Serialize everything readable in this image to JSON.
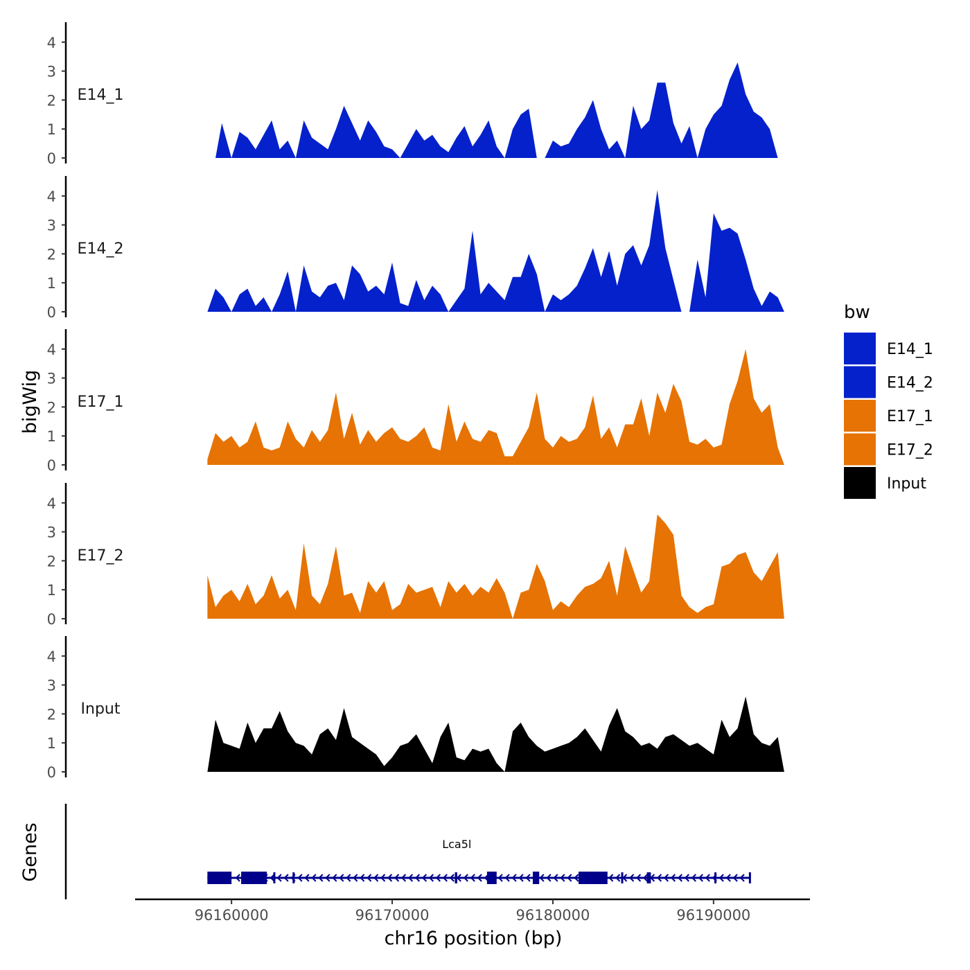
{
  "chart_data": {
    "type": "area",
    "title": "",
    "xlabel": "chr16 position (bp)",
    "ylabel": "bigWig",
    "genes_label": "Genes",
    "xlim": [
      96154000,
      96196000
    ],
    "ylim": [
      0,
      4.7
    ],
    "x_ticks": [
      96160000,
      96170000,
      96180000,
      96190000
    ],
    "x_tick_labels": [
      "96160000",
      "96170000",
      "96180000",
      "96190000"
    ],
    "y_ticks": [
      0,
      1,
      2,
      3,
      4
    ],
    "y_tick_labels": [
      "0",
      "1",
      "2",
      "3",
      "4"
    ],
    "legend": {
      "title": "bw",
      "position": "right",
      "entries": [
        {
          "label": "E14_1",
          "color": "#0421cc"
        },
        {
          "label": "E14_2",
          "color": "#0421cc"
        },
        {
          "label": "E17_1",
          "color": "#e67303"
        },
        {
          "label": "E17_2",
          "color": "#e67303"
        },
        {
          "label": "Input",
          "color": "#000000"
        }
      ]
    },
    "series": [
      {
        "name": "E14_1",
        "color": "#0421cc",
        "x": [
          96158500,
          96159000,
          96159400,
          96160000,
          96160500,
          96161000,
          96161500,
          96162000,
          96162500,
          96163000,
          96163500,
          96164000,
          96164500,
          96165000,
          96165500,
          96166000,
          96166500,
          96167000,
          96167500,
          96168000,
          96168500,
          96169000,
          96169500,
          96170000,
          96170500,
          96171000,
          96171500,
          96172000,
          96172500,
          96173000,
          96173500,
          96174000,
          96174500,
          96175000,
          96175500,
          96176000,
          96176500,
          96177000,
          96177500,
          96178000,
          96178500,
          96179000,
          96179500,
          96180000,
          96180500,
          96181000,
          96181500,
          96182000,
          96182500,
          96183000,
          96183500,
          96184000,
          96184500,
          96185000,
          96185500,
          96186000,
          96186500,
          96187000,
          96187500,
          96188000,
          96188500,
          96189000,
          96189500,
          96190000,
          96190500,
          96191000,
          96191500,
          96192000,
          96192500,
          96193000,
          96193500,
          96194000
        ],
        "values": [
          0,
          0,
          1.2,
          0,
          0.9,
          0.7,
          0.3,
          0.8,
          1.3,
          0.3,
          0.6,
          0,
          1.3,
          0.7,
          0.5,
          0.3,
          1.0,
          1.8,
          1.2,
          0.6,
          1.3,
          0.9,
          0.4,
          0.3,
          0,
          0.5,
          1.0,
          0.6,
          0.8,
          0.4,
          0.2,
          0.7,
          1.1,
          0.4,
          0.8,
          1.3,
          0.4,
          0,
          1.0,
          1.5,
          1.7,
          0,
          0,
          0.6,
          0.4,
          0.5,
          1.0,
          1.4,
          2.0,
          1.0,
          0.3,
          0.6,
          0,
          1.8,
          1.0,
          1.3,
          2.6,
          2.6,
          1.2,
          0.5,
          1.1,
          0,
          1.0,
          1.5,
          1.8,
          2.7,
          3.3,
          2.2,
          1.6,
          1.4,
          1.0,
          0
        ]
      },
      {
        "name": "E14_2",
        "color": "#0421cc",
        "x": [
          96158500,
          96159000,
          96159500,
          96160000,
          96160500,
          96161000,
          96161500,
          96162000,
          96162500,
          96163000,
          96163500,
          96164000,
          96164500,
          96165000,
          96165500,
          96166000,
          96166500,
          96167000,
          96167500,
          96168000,
          96168500,
          96169000,
          96169500,
          96170000,
          96170500,
          96171000,
          96171500,
          96172000,
          96172500,
          96173000,
          96173500,
          96174000,
          96174500,
          96175000,
          96175500,
          96176000,
          96176500,
          96177000,
          96177500,
          96178000,
          96178500,
          96179000,
          96179500,
          96180000,
          96180500,
          96181000,
          96181500,
          96182000,
          96182500,
          96183000,
          96183500,
          96184000,
          96184500,
          96185000,
          96185500,
          96186000,
          96186500,
          96187000,
          96187500,
          96188000,
          96188500,
          96189000,
          96189500,
          96190000,
          96190500,
          96191000,
          96191500,
          96192000,
          96192500,
          96193000,
          96193500,
          96194000,
          96194400
        ],
        "values": [
          0,
          0.8,
          0.5,
          0,
          0.6,
          0.8,
          0.2,
          0.5,
          0,
          0.6,
          1.4,
          0,
          1.6,
          0.7,
          0.5,
          0.9,
          1.0,
          0.4,
          1.6,
          1.3,
          0.7,
          0.9,
          0.6,
          1.7,
          0.3,
          0.2,
          1.1,
          0.4,
          0.9,
          0.6,
          0,
          0.4,
          0.8,
          2.8,
          0.6,
          1.0,
          0.7,
          0.4,
          1.2,
          1.2,
          2.0,
          1.3,
          0,
          0.6,
          0.4,
          0.6,
          0.9,
          1.5,
          2.2,
          1.2,
          2.1,
          0.9,
          2.0,
          2.3,
          1.6,
          2.3,
          4.2,
          2.2,
          1.1,
          0,
          0,
          1.8,
          0.5,
          3.4,
          2.8,
          2.9,
          2.7,
          1.8,
          0.8,
          0.2,
          0.7,
          0.5,
          0
        ]
      },
      {
        "name": "E17_1",
        "color": "#e67303",
        "x": [
          96158500,
          96159000,
          96159500,
          96160000,
          96160500,
          96161000,
          96161500,
          96162000,
          96162500,
          96163000,
          96163500,
          96164000,
          96164500,
          96165000,
          96165500,
          96166000,
          96166500,
          96167000,
          96167500,
          96168000,
          96168500,
          96169000,
          96169500,
          96170000,
          96170500,
          96171000,
          96171500,
          96172000,
          96172500,
          96173000,
          96173500,
          96174000,
          96174500,
          96175000,
          96175500,
          96176000,
          96176500,
          96177000,
          96177500,
          96178000,
          96178500,
          96179000,
          96179500,
          96180000,
          96180500,
          96181000,
          96181500,
          96182000,
          96182500,
          96183000,
          96183500,
          96184000,
          96184500,
          96185000,
          96185500,
          96186000,
          96186500,
          96187000,
          96187500,
          96188000,
          96188500,
          96189000,
          96189500,
          96190000,
          96190500,
          96191000,
          96191500,
          96192000,
          96192500,
          96193000,
          96193500,
          96194000,
          96194400
        ],
        "values": [
          0.2,
          1.1,
          0.8,
          1.0,
          0.6,
          0.8,
          1.5,
          0.6,
          0.5,
          0.6,
          1.5,
          0.9,
          0.6,
          1.2,
          0.8,
          1.2,
          2.5,
          0.9,
          1.8,
          0.7,
          1.2,
          0.8,
          1.1,
          1.3,
          0.9,
          0.8,
          1.0,
          1.3,
          0.6,
          0.5,
          2.1,
          0.8,
          1.5,
          0.9,
          0.8,
          1.2,
          1.1,
          0.3,
          0.3,
          0.8,
          1.3,
          2.5,
          0.9,
          0.6,
          1.0,
          0.8,
          0.9,
          1.3,
          2.4,
          0.9,
          1.3,
          0.6,
          1.4,
          1.4,
          2.3,
          1.0,
          2.5,
          1.8,
          2.8,
          2.2,
          0.8,
          0.7,
          0.9,
          0.6,
          0.7,
          2.1,
          2.9,
          4.0,
          2.3,
          1.8,
          2.1,
          0.6,
          0
        ]
      },
      {
        "name": "E17_2",
        "color": "#e67303",
        "x": [
          96158500,
          96159000,
          96159500,
          96160000,
          96160500,
          96161000,
          96161500,
          96162000,
          96162500,
          96163000,
          96163500,
          96164000,
          96164500,
          96165000,
          96165500,
          96166000,
          96166500,
          96167000,
          96167500,
          96168000,
          96168500,
          96169000,
          96169500,
          96170000,
          96170500,
          96171000,
          96171500,
          96172000,
          96172500,
          96173000,
          96173500,
          96174000,
          96174500,
          96175000,
          96175500,
          96176000,
          96176500,
          96177000,
          96177500,
          96178000,
          96178500,
          96179000,
          96179500,
          96180000,
          96180500,
          96181000,
          96181500,
          96182000,
          96182500,
          96183000,
          96183500,
          96184000,
          96184500,
          96185000,
          96185500,
          96186000,
          96186500,
          96187000,
          96187500,
          96188000,
          96188500,
          96189000,
          96189500,
          96190000,
          96190500,
          96191000,
          96191500,
          96192000,
          96192500,
          96193000,
          96193500,
          96194000,
          96194400
        ],
        "values": [
          1.5,
          0.4,
          0.8,
          1.0,
          0.6,
          1.2,
          0.5,
          0.8,
          1.5,
          0.7,
          1.0,
          0.3,
          2.6,
          0.8,
          0.5,
          1.2,
          2.5,
          0.8,
          0.9,
          0.2,
          1.3,
          0.9,
          1.3,
          0.3,
          0.5,
          1.2,
          0.9,
          1.0,
          1.1,
          0.4,
          1.3,
          0.9,
          1.2,
          0.8,
          1.1,
          0.9,
          1.4,
          0.9,
          0,
          0.9,
          1.0,
          1.9,
          1.3,
          0.3,
          0.6,
          0.4,
          0.8,
          1.1,
          1.2,
          1.4,
          2.0,
          0.8,
          2.5,
          1.7,
          0.9,
          1.3,
          3.6,
          3.3,
          2.9,
          0.8,
          0.4,
          0.2,
          0.4,
          0.5,
          1.8,
          1.9,
          2.2,
          2.3,
          1.6,
          1.3,
          1.8,
          2.3,
          0
        ]
      },
      {
        "name": "Input",
        "color": "#000000",
        "x": [
          96158500,
          96159000,
          96159500,
          96160000,
          96160500,
          96161000,
          96161500,
          96162000,
          96162500,
          96163000,
          96163500,
          96164000,
          96164500,
          96165000,
          96165500,
          96166000,
          96166500,
          96167000,
          96167500,
          96168000,
          96168500,
          96169000,
          96169500,
          96170000,
          96170500,
          96171000,
          96171500,
          96172000,
          96172500,
          96173000,
          96173500,
          96174000,
          96174500,
          96175000,
          96175500,
          96176000,
          96176500,
          96177000,
          96177500,
          96178000,
          96178500,
          96179000,
          96179500,
          96180000,
          96180500,
          96181000,
          96181500,
          96182000,
          96182500,
          96183000,
          96183500,
          96184000,
          96184500,
          96185000,
          96185500,
          96186000,
          96186500,
          96187000,
          96187500,
          96188000,
          96188500,
          96189000,
          96189500,
          96190000,
          96190500,
          96191000,
          96191500,
          96192000,
          96192500,
          96193000,
          96193500,
          96194000,
          96194400
        ],
        "values": [
          0,
          1.8,
          1.0,
          0.9,
          0.8,
          1.7,
          1.0,
          1.5,
          1.5,
          2.1,
          1.4,
          1.0,
          0.9,
          0.6,
          1.3,
          1.5,
          1.1,
          2.2,
          1.2,
          1.0,
          0.8,
          0.6,
          0.2,
          0.5,
          0.9,
          1.0,
          1.3,
          0.8,
          0.3,
          1.2,
          1.7,
          0.5,
          0.4,
          0.8,
          0.7,
          0.8,
          0.3,
          0,
          1.4,
          1.7,
          1.2,
          0.9,
          0.7,
          0.8,
          0.9,
          1.0,
          1.2,
          1.5,
          1.1,
          0.7,
          1.6,
          2.2,
          1.4,
          1.2,
          0.9,
          1.0,
          0.8,
          1.2,
          1.3,
          1.1,
          0.9,
          1.0,
          0.8,
          0.6,
          1.8,
          1.2,
          1.5,
          2.6,
          1.3,
          1.0,
          0.9,
          1.2,
          0
        ]
      }
    ],
    "genes": [
      {
        "name": "Lca5l",
        "color": "#00008b",
        "start": 96158500,
        "end": 96192300,
        "strand": "-",
        "exons": [
          [
            96158500,
            96160000
          ],
          [
            96160600,
            96162200
          ],
          [
            96162600,
            96162700
          ],
          [
            96163800,
            96163900
          ],
          [
            96173900,
            96174050
          ],
          [
            96175900,
            96176500
          ],
          [
            96178750,
            96179150
          ],
          [
            96181600,
            96183400
          ],
          [
            96184250,
            96184350
          ],
          [
            96185850,
            96186100
          ],
          [
            96190050,
            96190150
          ],
          [
            96192200,
            96192300
          ]
        ]
      }
    ]
  }
}
